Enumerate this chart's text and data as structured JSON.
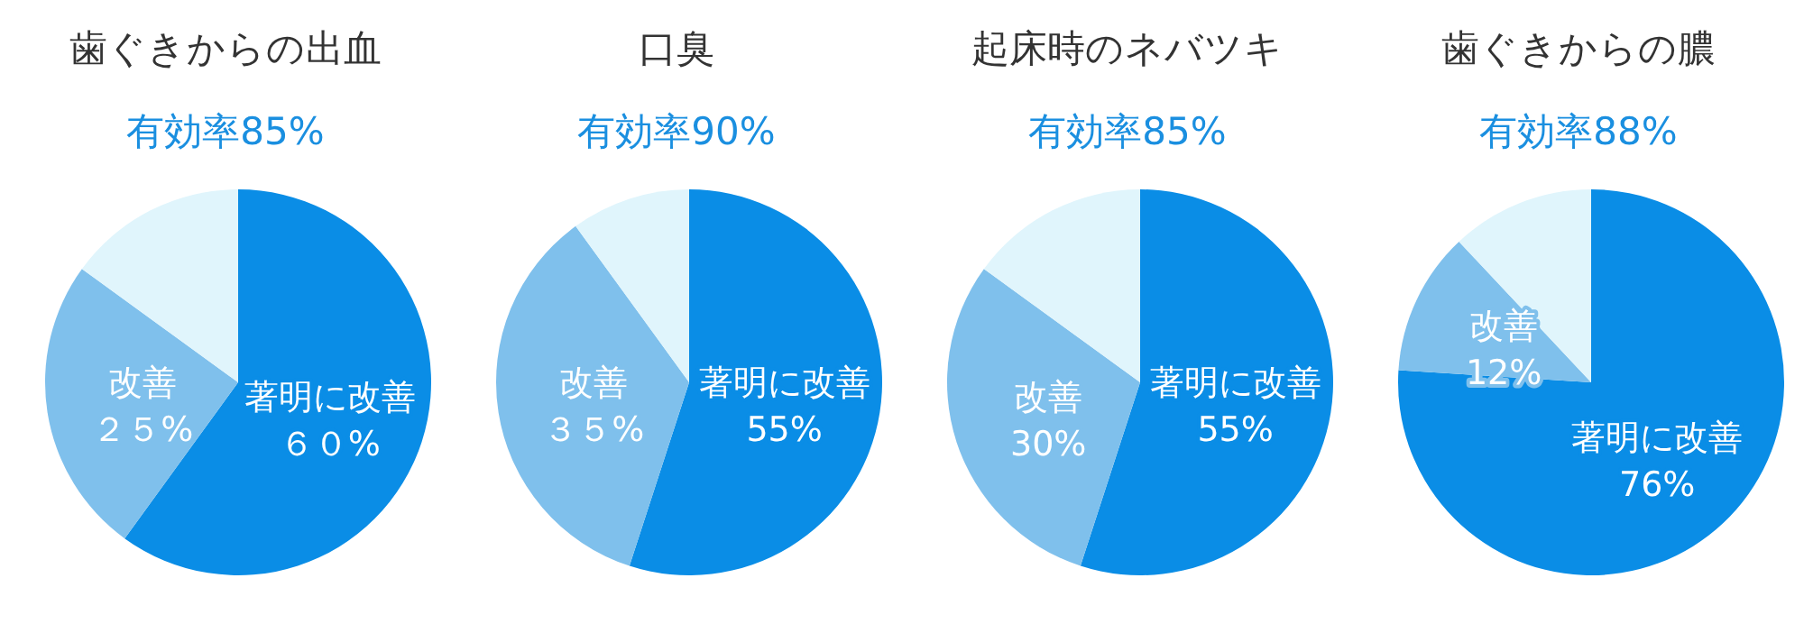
{
  "chart_data": [
    {
      "type": "pie",
      "title": "歯ぐきからの出血",
      "subtitle": "有効率85%",
      "categories": [
        "著明に改善",
        "改善",
        null
      ],
      "values": [
        60,
        25,
        15
      ],
      "colors": [
        "#0a8de6",
        "#7fc0ec",
        "#e0f5fc"
      ],
      "value_labels": [
        "６０%",
        "２５%",
        null
      ]
    },
    {
      "type": "pie",
      "title": "口臭",
      "subtitle": "有効率90%",
      "categories": [
        "著明に改善",
        "改善",
        null
      ],
      "values": [
        55,
        35,
        10
      ],
      "colors": [
        "#0a8de6",
        "#7fc0ec",
        "#e0f5fc"
      ],
      "value_labels": [
        "55%",
        "３５%",
        null
      ]
    },
    {
      "type": "pie",
      "title": "起床時のネバツキ",
      "subtitle": "有効率85%",
      "categories": [
        "著明に改善",
        "改善",
        null
      ],
      "values": [
        55,
        30,
        15
      ],
      "colors": [
        "#0a8de6",
        "#7fc0ec",
        "#e0f5fc"
      ],
      "value_labels": [
        "55%",
        "30%",
        null
      ]
    },
    {
      "type": "pie",
      "title": "歯ぐきからの膿",
      "subtitle": "有効率88%",
      "categories": [
        "著明に改善",
        "改善",
        null
      ],
      "values": [
        76,
        12,
        12
      ],
      "colors": [
        "#0a8de6",
        "#7fc0ec",
        "#e0f5fc"
      ],
      "value_labels": [
        "76%",
        "12%",
        null
      ]
    }
  ]
}
